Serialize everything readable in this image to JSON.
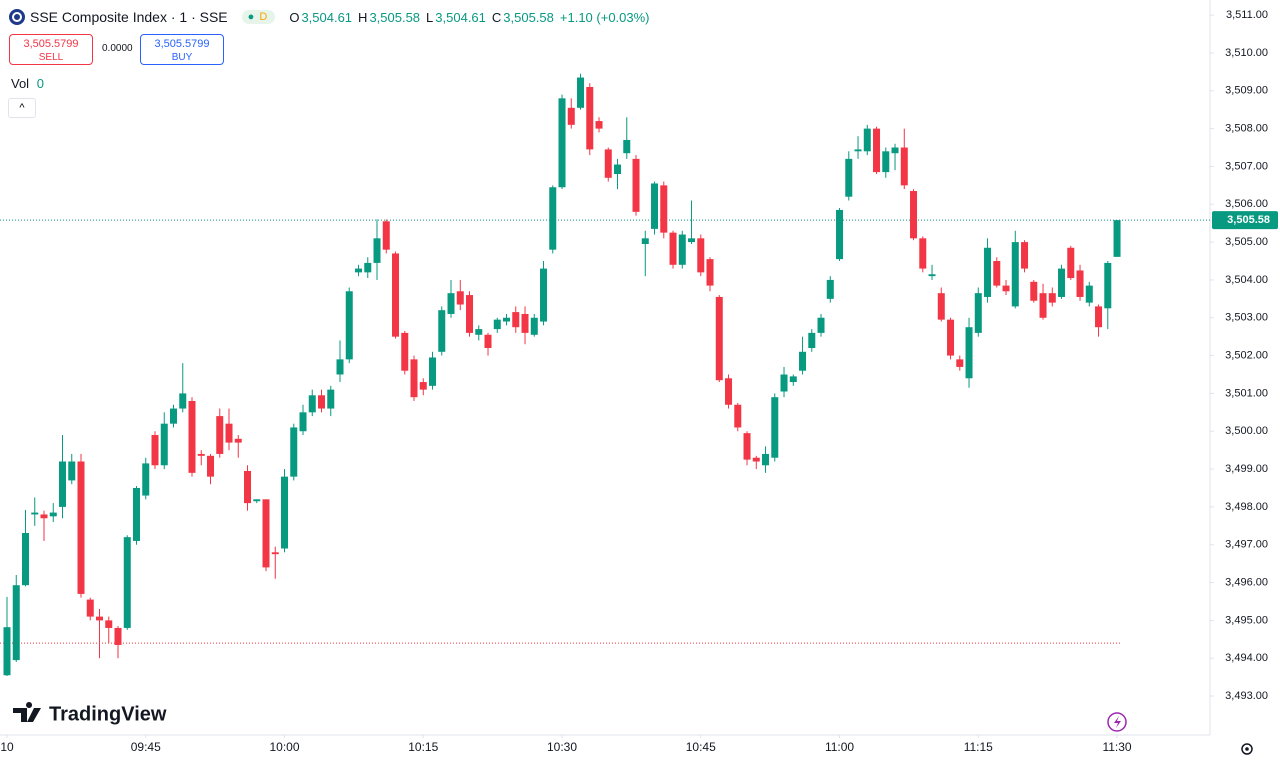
{
  "chart_data": {
    "type": "candlestick",
    "title": "SSE Composite Index · 1 · SSE",
    "interval_badge": "D",
    "ohlc_header": {
      "o_label": "O",
      "o": "3,504.61",
      "h_label": "H",
      "h": "3,505.58",
      "l_label": "L",
      "l": "3,504.61",
      "c_label": "C",
      "c": "3,505.58",
      "change": "+1.10 (+0.03%)"
    },
    "sell_price": "3,505.5799",
    "sell_label": "SELL",
    "spread": "0.0000",
    "buy_price": "3,505.5799",
    "buy_label": "BUY",
    "volume_label": "Vol",
    "volume_value": "0",
    "brand": "TradingView",
    "up_color": "#089981",
    "down_color": "#f23645",
    "ylim": [
      3491.97,
      3511.4
    ],
    "xlim": [
      -0.757,
      130.05
    ],
    "yticks": [
      {
        "value": 3493,
        "label": "3,493.00"
      },
      {
        "value": 3494,
        "label": "3,494.00"
      },
      {
        "value": 3495,
        "label": "3,495.00"
      },
      {
        "value": 3496,
        "label": "3,496.00"
      },
      {
        "value": 3497,
        "label": "3,497.00"
      },
      {
        "value": 3498,
        "label": "3,498.00"
      },
      {
        "value": 3499,
        "label": "3,499.00"
      },
      {
        "value": 3500,
        "label": "3,500.00"
      },
      {
        "value": 3501,
        "label": "3,501.00"
      },
      {
        "value": 3502,
        "label": "3,502.00"
      },
      {
        "value": 3503,
        "label": "3,503.00"
      },
      {
        "value": 3504,
        "label": "3,504.00"
      },
      {
        "value": 3505,
        "label": "3,505.00"
      },
      {
        "value": 3506,
        "label": "3,506.00"
      },
      {
        "value": 3507,
        "label": "3,507.00"
      },
      {
        "value": 3508,
        "label": "3,508.00"
      },
      {
        "value": 3509,
        "label": "3,509.00"
      },
      {
        "value": 3510,
        "label": "3,510.00"
      },
      {
        "value": 3511,
        "label": "3,511.00"
      }
    ],
    "xticks": [
      {
        "value": 0,
        "label": "10"
      },
      {
        "value": 15,
        "label": "09:45"
      },
      {
        "value": 30,
        "label": "10:00"
      },
      {
        "value": 45,
        "label": "10:15"
      },
      {
        "value": 60,
        "label": "10:30"
      },
      {
        "value": 75,
        "label": "10:45"
      },
      {
        "value": 90,
        "label": "11:00"
      },
      {
        "value": 105,
        "label": "11:15"
      },
      {
        "value": 120,
        "label": "11:30"
      }
    ],
    "last_price": {
      "value": 3505.58,
      "label": "3,505.58"
    },
    "reference_line": 3494.4,
    "open": [
      3493.55,
      3493.95,
      3495.93,
      3497.8,
      3497.8,
      3497.75,
      3498.0,
      3498.7,
      3499.2,
      3495.55,
      3495.1,
      3495.0,
      3494.8,
      3494.8,
      3497.1,
      3498.3,
      3499.9,
      3499.1,
      3500.2,
      3500.6,
      3500.8,
      3499.4,
      3499.35,
      3500.4,
      3500.2,
      3499.8,
      3498.95,
      3498.15,
      3498.2,
      3496.8,
      3496.9,
      3498.8,
      3500.0,
      3500.5,
      3500.95,
      3500.6,
      3501.5,
      3501.9,
      3504.2,
      3504.2,
      3504.45,
      3505.55,
      3504.7,
      3502.6,
      3501.9,
      3501.3,
      3501.2,
      3502.1,
      3503.1,
      3503.7,
      3503.6,
      3502.55,
      3502.55,
      3502.7,
      3502.9,
      3503.15,
      3503.1,
      3502.55,
      3502.9,
      3504.8,
      3506.45,
      3508.55,
      3508.55,
      3509.1,
      3508.2,
      3507.45,
      3506.8,
      3507.35,
      3507.2,
      3504.95,
      3505.35,
      3506.5,
      3505.25,
      3504.4,
      3505.0,
      3505.1,
      3504.55,
      3503.55,
      3501.4,
      3500.7,
      3499.95,
      3499.3,
      3499.1,
      3499.3,
      3501.05,
      3501.3,
      3501.6,
      3502.2,
      3502.6,
      3503.5,
      3504.55,
      3506.2,
      3507.4,
      3507.4,
      3508.0,
      3506.85,
      3507.35,
      3507.5,
      3506.35,
      3505.1,
      3504.1,
      3503.65,
      3502.95,
      3501.9,
      3501.4,
      3502.6,
      3503.55,
      3504.5,
      3503.85,
      3503.3,
      3505.0,
      3503.95,
      3503.65,
      3503.65,
      3503.55,
      3504.85,
      3504.25,
      3503.4,
      3503.3,
      3503.25,
      3504.61
    ],
    "high": [
      3495.62,
      3496.2,
      3497.92,
      3498.25,
      3497.9,
      3498.1,
      3499.9,
      3499.4,
      3499.4,
      3495.6,
      3495.3,
      3495.1,
      3494.85,
      3497.25,
      3498.55,
      3499.3,
      3500.0,
      3500.5,
      3500.7,
      3501.8,
      3500.9,
      3499.5,
      3499.4,
      3500.6,
      3500.6,
      3499.9,
      3499.1,
      3498.2,
      3498.2,
      3496.95,
      3499.0,
      3500.2,
      3500.7,
      3501.1,
      3501.1,
      3501.2,
      3502.4,
      3503.8,
      3504.4,
      3504.6,
      3505.6,
      3505.6,
      3504.75,
      3502.65,
      3502.0,
      3501.4,
      3502.1,
      3503.3,
      3504.0,
      3504.0,
      3503.7,
      3502.8,
      3502.6,
      3503.0,
      3503.1,
      3503.3,
      3503.3,
      3503.1,
      3504.5,
      3506.5,
      3508.9,
      3508.8,
      3509.45,
      3509.2,
      3508.3,
      3507.5,
      3507.2,
      3508.3,
      3507.3,
      3505.3,
      3506.6,
      3506.6,
      3505.3,
      3505.3,
      3506.1,
      3505.2,
      3504.6,
      3503.6,
      3501.5,
      3500.75,
      3500.0,
      3499.35,
      3499.6,
      3501.0,
      3501.7,
      3501.5,
      3502.5,
      3502.7,
      3503.1,
      3504.1,
      3505.9,
      3507.4,
      3507.8,
      3508.1,
      3508.05,
      3507.5,
      3507.6,
      3508.0,
      3506.4,
      3505.15,
      3504.4,
      3503.8,
      3503.0,
      3502.0,
      3503.0,
      3503.8,
      3505.1,
      3504.6,
      3504.0,
      3505.3,
      3505.05,
      3504.0,
      3503.9,
      3503.8,
      3504.4,
      3504.9,
      3504.4,
      3503.95,
      3503.35,
      3504.5,
      3505.58
    ],
    "low": [
      3493.53,
      3493.9,
      3495.9,
      3497.5,
      3497.1,
      3497.6,
      3497.7,
      3498.6,
      3495.6,
      3495.0,
      3494.0,
      3494.4,
      3494.0,
      3494.75,
      3497.0,
      3498.2,
      3499.0,
      3499.0,
      3500.1,
      3500.5,
      3498.8,
      3499.1,
      3498.6,
      3499.3,
      3499.5,
      3499.3,
      3497.9,
      3498.1,
      3496.3,
      3496.1,
      3496.8,
      3498.7,
      3499.9,
      3500.4,
      3500.5,
      3500.4,
      3501.3,
      3501.8,
      3504.1,
      3504.05,
      3504.0,
      3504.7,
      3502.45,
      3501.5,
      3500.8,
      3500.95,
      3501.1,
      3502.0,
      3503.0,
      3503.2,
      3502.5,
      3502.4,
      3502.0,
      3502.6,
      3502.8,
      3502.6,
      3502.3,
      3502.5,
      3502.8,
      3504.7,
      3506.4,
      3508.0,
      3508.5,
      3507.3,
      3507.9,
      3506.6,
      3506.4,
      3507.2,
      3505.7,
      3504.1,
      3505.2,
      3505.1,
      3504.3,
      3504.3,
      3504.95,
      3504.1,
      3503.7,
      3501.3,
      3500.6,
      3500.0,
      3499.1,
      3499.0,
      3498.9,
      3499.2,
      3500.9,
      3501.2,
      3501.5,
      3502.1,
      3502.5,
      3503.4,
      3504.5,
      3506.1,
      3507.2,
      3507.3,
      3506.8,
      3506.7,
      3506.9,
      3506.4,
      3505.05,
      3504.2,
      3504.0,
      3502.9,
      3501.9,
      3501.6,
      3501.15,
      3502.5,
      3503.4,
      3503.8,
      3503.6,
      3503.25,
      3504.2,
      3503.4,
      3502.95,
      3503.3,
      3503.5,
      3504.0,
      3503.45,
      3503.3,
      3502.5,
      3502.7,
      3504.61
    ],
    "close": [
      3494.82,
      3495.93,
      3497.31,
      3497.85,
      3497.7,
      3497.85,
      3499.2,
      3499.2,
      3495.7,
      3495.1,
      3495.0,
      3494.8,
      3494.35,
      3497.2,
      3498.5,
      3499.15,
      3499.1,
      3500.2,
      3500.6,
      3501.0,
      3498.9,
      3499.35,
      3498.8,
      3499.4,
      3499.7,
      3499.7,
      3498.1,
      3498.2,
      3496.4,
      3496.75,
      3498.8,
      3500.1,
      3500.5,
      3500.95,
      3500.6,
      3501.1,
      3501.9,
      3503.7,
      3504.3,
      3504.45,
      3505.1,
      3504.8,
      3502.5,
      3501.6,
      3500.9,
      3501.1,
      3501.95,
      3503.2,
      3503.65,
      3503.35,
      3502.6,
      3502.7,
      3502.2,
      3502.95,
      3503.0,
      3502.75,
      3502.6,
      3503.0,
      3504.3,
      3506.45,
      3508.8,
      3508.1,
      3509.35,
      3507.45,
      3508.0,
      3506.7,
      3507.05,
      3507.7,
      3505.8,
      3505.1,
      3506.55,
      3505.25,
      3504.4,
      3505.2,
      3505.1,
      3504.2,
      3503.85,
      3501.35,
      3500.7,
      3500.1,
      3499.25,
      3499.2,
      3499.4,
      3500.9,
      3501.5,
      3501.45,
      3502.1,
      3502.6,
      3503.0,
      3504.0,
      3505.85,
      3507.2,
      3507.45,
      3508.0,
      3506.85,
      3507.4,
      3507.5,
      3506.5,
      3505.1,
      3504.3,
      3504.15,
      3502.95,
      3502.0,
      3501.7,
      3502.75,
      3503.65,
      3504.85,
      3503.85,
      3503.7,
      3505.0,
      3504.3,
      3503.45,
      3503.0,
      3503.4,
      3504.3,
      3504.05,
      3503.55,
      3503.85,
      3502.75,
      3504.45,
      3505.58
    ]
  }
}
